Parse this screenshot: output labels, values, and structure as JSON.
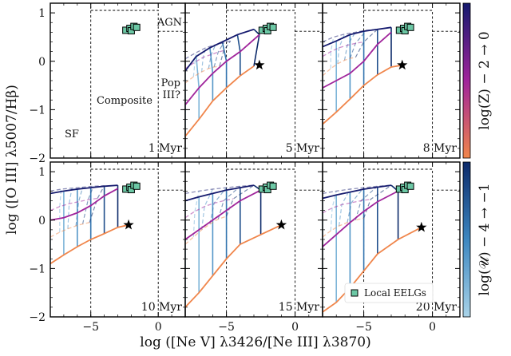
{
  "figure": {
    "xlabel": "log ([Ne V] λ3426/[Ne III] λ3870)",
    "ylabel": "log ([O III] λ5007/Hβ)",
    "colorbar_top_label": "log(Z) − 2 → 0",
    "colorbar_bottom_label": "log(𝒰) − 4 → −1",
    "legend_label": "Local EELGs",
    "region_labels": {
      "sf": "SF",
      "composite": "Composite",
      "agn": "AGN",
      "popiii": [
        "Pop",
        "III?"
      ]
    }
  },
  "colors": {
    "metal_low": "#f0854a",
    "metal_mid": "#a0249b",
    "metal_high": "#151a6e",
    "u_low": "#a9d3e8",
    "u_mid": "#3d87c0",
    "u_high": "#0c2a6a",
    "eelg_fill": "#6cc8a5",
    "star": "#000000"
  },
  "chart_data": [
    {
      "type": "line",
      "panel": 1,
      "age_label": "1 Myr",
      "xlim": [
        -8,
        2
      ],
      "ylim": [
        -2,
        1.2
      ],
      "xticks": [
        -5,
        0
      ],
      "yticks": [
        -2,
        -1,
        0,
        1
      ],
      "show_region_labels": true,
      "grid": [],
      "star": null,
      "eelgs": [
        [
          -2.4,
          0.64
        ],
        [
          -2.1,
          0.68
        ],
        [
          -2.0,
          0.63
        ],
        [
          -1.8,
          0.72
        ],
        [
          -1.6,
          0.7
        ]
      ]
    },
    {
      "type": "line",
      "panel": 2,
      "age_label": "5 Myr",
      "xlim": [
        -8,
        2
      ],
      "ylim": [
        -2,
        1.2
      ],
      "xticks": [
        -5,
        0
      ],
      "yticks": [
        -2,
        -1,
        0,
        1
      ],
      "show_region_labels": false,
      "star": [
        -2.6,
        -0.08
      ],
      "grid": [
        [
          [
            -8.0,
            -0.45
          ],
          [
            -7.4,
            -0.32
          ],
          [
            -6.8,
            -0.22
          ],
          [
            -6.3,
            -0.15
          ],
          [
            -5.9,
            -0.12
          ],
          [
            -5.5,
            -0.1
          ]
        ],
        [
          [
            -8.0,
            -0.15
          ],
          [
            -7.3,
            -0.02
          ],
          [
            -6.7,
            0.08
          ],
          [
            -6.1,
            0.14
          ],
          [
            -5.6,
            0.19
          ],
          [
            -5.2,
            0.22
          ]
        ],
        [
          [
            -8.0,
            0.05
          ],
          [
            -7.2,
            0.18
          ],
          [
            -6.5,
            0.28
          ],
          [
            -5.8,
            0.34
          ],
          [
            -5.2,
            0.38
          ],
          [
            -4.7,
            0.42
          ]
        ],
        [
          [
            -8.0,
            -1.55
          ],
          [
            -7.0,
            -1.2
          ],
          [
            -6.0,
            -0.82
          ],
          [
            -5.0,
            -0.55
          ],
          [
            -4.0,
            -0.3
          ],
          [
            -3.0,
            -0.1
          ]
        ],
        [
          [
            -8.0,
            -0.9
          ],
          [
            -7.0,
            -0.55
          ],
          [
            -6.0,
            -0.25
          ],
          [
            -5.0,
            0.0
          ],
          [
            -4.0,
            0.2
          ],
          [
            -2.6,
            0.55
          ]
        ],
        [
          [
            -8.0,
            -0.2
          ],
          [
            -7.2,
            0.1
          ],
          [
            -6.2,
            0.28
          ],
          [
            -5.3,
            0.4
          ],
          [
            -4.2,
            0.55
          ],
          [
            -3.0,
            0.66
          ]
        ]
      ]
    },
    {
      "type": "line",
      "panel": 3,
      "age_label": "8 Myr",
      "xlim": [
        -8,
        2
      ],
      "ylim": [
        -2,
        1.2
      ],
      "xticks": [
        -5,
        0
      ],
      "yticks": [
        -2,
        -1,
        0,
        1
      ],
      "show_region_labels": false,
      "star": [
        -2.2,
        -0.08
      ],
      "grid": [
        [
          [
            -8.0,
            -0.3
          ],
          [
            -7.4,
            -0.15
          ],
          [
            -6.9,
            -0.05
          ],
          [
            -6.4,
            0.02
          ],
          [
            -6.0,
            0.06
          ],
          [
            -5.6,
            0.08
          ]
        ],
        [
          [
            -8.0,
            0.1
          ],
          [
            -7.4,
            0.2
          ],
          [
            -6.8,
            0.28
          ],
          [
            -6.2,
            0.33
          ],
          [
            -5.6,
            0.37
          ],
          [
            -5.0,
            0.4
          ]
        ],
        [
          [
            -8.0,
            0.4
          ],
          [
            -7.2,
            0.5
          ],
          [
            -6.4,
            0.56
          ],
          [
            -5.6,
            0.6
          ],
          [
            -4.8,
            0.64
          ],
          [
            -4.0,
            0.66
          ]
        ],
        [
          [
            -8.0,
            -1.3
          ],
          [
            -7.0,
            -1.05
          ],
          [
            -6.0,
            -0.78
          ],
          [
            -5.0,
            -0.5
          ],
          [
            -4.0,
            -0.28
          ],
          [
            -3.0,
            -0.12
          ],
          [
            -2.2,
            -0.08
          ]
        ],
        [
          [
            -8.0,
            -0.55
          ],
          [
            -7.0,
            -0.4
          ],
          [
            -6.0,
            -0.25
          ],
          [
            -5.0,
            0.0
          ],
          [
            -4.0,
            0.35
          ],
          [
            -3.0,
            0.6
          ]
        ],
        [
          [
            -8.0,
            0.3
          ],
          [
            -7.0,
            0.42
          ],
          [
            -6.0,
            0.55
          ],
          [
            -5.0,
            0.62
          ],
          [
            -4.0,
            0.66
          ],
          [
            -3.0,
            0.7
          ]
        ]
      ]
    },
    {
      "type": "line",
      "panel": 4,
      "age_label": "10 Myr",
      "xlim": [
        -8,
        2
      ],
      "ylim": [
        -2,
        1.2
      ],
      "xticks": [
        -5,
        0
      ],
      "yticks": [
        -2,
        -1,
        0,
        1
      ],
      "show_region_labels": false,
      "star": [
        -2.2,
        -0.1
      ],
      "grid": [
        [
          [
            -8.0,
            -0.35
          ],
          [
            -7.3,
            -0.25
          ],
          [
            -6.7,
            -0.18
          ],
          [
            -6.1,
            -0.12
          ],
          [
            -5.6,
            -0.08
          ],
          [
            -5.1,
            -0.05
          ]
        ],
        [
          [
            -8.0,
            0.2
          ],
          [
            -7.3,
            0.28
          ],
          [
            -6.6,
            0.34
          ],
          [
            -5.9,
            0.38
          ],
          [
            -5.2,
            0.42
          ],
          [
            -4.5,
            0.45
          ]
        ],
        [
          [
            -8.0,
            0.6
          ],
          [
            -7.2,
            0.64
          ],
          [
            -6.4,
            0.66
          ],
          [
            -5.6,
            0.68
          ],
          [
            -4.8,
            0.7
          ],
          [
            -4.0,
            0.71
          ]
        ],
        [
          [
            -8.0,
            -0.9
          ],
          [
            -7.0,
            -0.72
          ],
          [
            -6.0,
            -0.55
          ],
          [
            -5.0,
            -0.4
          ],
          [
            -4.0,
            -0.28
          ],
          [
            -3.0,
            -0.15
          ],
          [
            -2.2,
            -0.1
          ]
        ],
        [
          [
            -8.0,
            0.0
          ],
          [
            -7.0,
            0.05
          ],
          [
            -6.0,
            0.15
          ],
          [
            -5.0,
            0.3
          ],
          [
            -4.0,
            0.5
          ],
          [
            -3.0,
            0.65
          ]
        ],
        [
          [
            -8.0,
            0.55
          ],
          [
            -7.0,
            0.6
          ],
          [
            -6.0,
            0.64
          ],
          [
            -5.0,
            0.67
          ],
          [
            -4.0,
            0.7
          ],
          [
            -3.0,
            0.72
          ]
        ]
      ]
    },
    {
      "type": "line",
      "panel": 5,
      "age_label": "15 Myr",
      "xlim": [
        -8,
        2
      ],
      "ylim": [
        -2,
        1.2
      ],
      "xticks": [
        -5,
        0
      ],
      "yticks": [
        -2,
        -1,
        0,
        1
      ],
      "show_region_labels": false,
      "star": [
        -1.0,
        -0.1
      ],
      "grid": [
        [
          [
            -8.0,
            -0.5
          ],
          [
            -7.4,
            -0.35
          ],
          [
            -6.8,
            -0.2
          ],
          [
            -6.2,
            -0.08
          ],
          [
            -5.6,
            0.02
          ],
          [
            -5.0,
            0.08
          ]
        ],
        [
          [
            -8.0,
            0.05
          ],
          [
            -7.3,
            0.18
          ],
          [
            -6.6,
            0.28
          ],
          [
            -5.9,
            0.35
          ],
          [
            -5.2,
            0.4
          ],
          [
            -4.5,
            0.44
          ]
        ],
        [
          [
            -8.0,
            0.55
          ],
          [
            -7.0,
            0.6
          ],
          [
            -6.0,
            0.64
          ],
          [
            -5.0,
            0.67
          ],
          [
            -4.0,
            0.7
          ],
          [
            -3.0,
            0.72
          ]
        ],
        [
          [
            -8.0,
            -1.8
          ],
          [
            -7.0,
            -1.5
          ],
          [
            -6.0,
            -1.15
          ],
          [
            -5.0,
            -0.8
          ],
          [
            -4.0,
            -0.5
          ],
          [
            -2.5,
            -0.3
          ],
          [
            -1.0,
            -0.1
          ]
        ],
        [
          [
            -8.0,
            -0.4
          ],
          [
            -7.0,
            -0.2
          ],
          [
            -6.0,
            0.0
          ],
          [
            -5.0,
            0.2
          ],
          [
            -4.0,
            0.4
          ],
          [
            -2.5,
            0.62
          ]
        ],
        [
          [
            -8.0,
            0.4
          ],
          [
            -7.0,
            0.48
          ],
          [
            -6.0,
            0.55
          ],
          [
            -5.0,
            0.62
          ],
          [
            -4.0,
            0.67
          ],
          [
            -3.0,
            0.72
          ]
        ]
      ]
    },
    {
      "type": "line",
      "panel": 6,
      "age_label": "20 Myr",
      "xlim": [
        -8,
        2
      ],
      "ylim": [
        -2,
        1.2
      ],
      "xticks": [
        -5,
        0
      ],
      "yticks": [
        -2,
        -1,
        0,
        1
      ],
      "show_region_labels": false,
      "star": [
        -0.8,
        -0.15
      ],
      "grid": [
        [
          [
            -8.0,
            -0.35
          ],
          [
            -7.4,
            -0.22
          ],
          [
            -6.8,
            -0.12
          ],
          [
            -6.2,
            -0.05
          ],
          [
            -5.6,
            0.0
          ],
          [
            -5.0,
            0.04
          ]
        ],
        [
          [
            -8.0,
            0.15
          ],
          [
            -7.3,
            0.25
          ],
          [
            -6.6,
            0.32
          ],
          [
            -5.9,
            0.36
          ],
          [
            -5.2,
            0.4
          ],
          [
            -4.5,
            0.43
          ]
        ],
        [
          [
            -8.0,
            0.55
          ],
          [
            -7.0,
            0.6
          ],
          [
            -6.0,
            0.64
          ],
          [
            -5.0,
            0.67
          ],
          [
            -4.0,
            0.7
          ],
          [
            -3.0,
            0.72
          ]
        ],
        [
          [
            -8.0,
            -1.9
          ],
          [
            -7.0,
            -1.7
          ],
          [
            -6.0,
            -1.4
          ],
          [
            -5.0,
            -1.05
          ],
          [
            -4.0,
            -0.7
          ],
          [
            -2.5,
            -0.4
          ],
          [
            -0.8,
            -0.15
          ]
        ],
        [
          [
            -8.0,
            -0.55
          ],
          [
            -7.0,
            -0.3
          ],
          [
            -6.0,
            -0.05
          ],
          [
            -5.0,
            0.18
          ],
          [
            -4.0,
            0.38
          ],
          [
            -2.5,
            0.6
          ]
        ],
        [
          [
            -8.0,
            0.45
          ],
          [
            -7.0,
            0.52
          ],
          [
            -6.0,
            0.58
          ],
          [
            -5.0,
            0.64
          ],
          [
            -4.0,
            0.68
          ],
          [
            -3.0,
            0.72
          ]
        ]
      ]
    }
  ]
}
